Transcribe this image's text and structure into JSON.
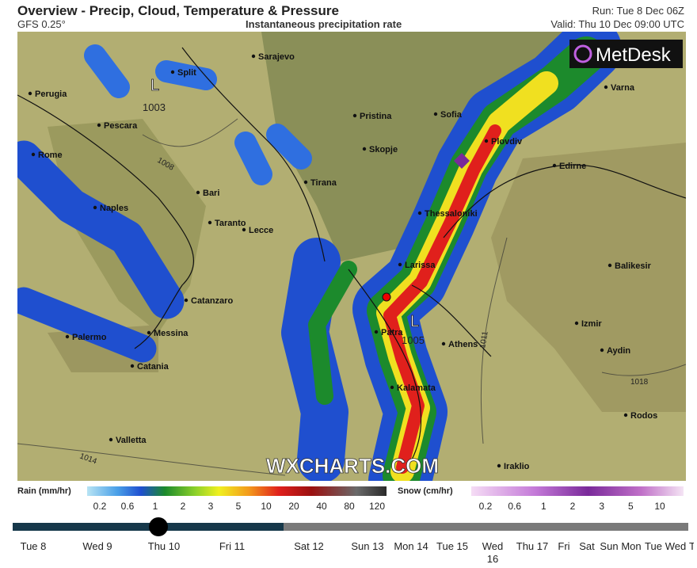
{
  "header": {
    "title": "Overview - Precip, Cloud, Temperature & Pressure",
    "model": "GFS 0.25°",
    "subtitle": "Instantaneous precipitation rate",
    "run": "Run: Tue 8 Dec 06Z",
    "valid": "Valid: Thu 10 Dec 09:00 UTC"
  },
  "logo": "MetDesk",
  "watermark": "WXCHARTS.COM",
  "cities": [
    "Sarajevo",
    "Split",
    "Perugia",
    "Pescara",
    "Rome",
    "Bari",
    "Naples",
    "Taranto",
    "Lecce",
    "Catanzaro",
    "Palermo",
    "Messina",
    "Catania",
    "Valletta",
    "Pristina",
    "Sofia",
    "Skopje",
    "Plovdiv",
    "Edirne",
    "Varna",
    "Tirana",
    "Thessaloniki",
    "Larissa",
    "Patra",
    "Athens",
    "Kalamata",
    "Izmir",
    "Aydin",
    "Balikesir",
    "Rodos",
    "Iraklio"
  ],
  "pressure_labels": [
    {
      "symbol": "L",
      "value": "1003"
    },
    {
      "symbol": "L",
      "value": "1005"
    }
  ],
  "isobars": [
    "1014",
    "1018",
    "1008",
    "1011"
  ],
  "legend": {
    "rain": {
      "title": "Rain (mm/hr)",
      "ticks": [
        0.2,
        0.6,
        1,
        2,
        3,
        5,
        10,
        20,
        40,
        80,
        120
      ]
    },
    "snow": {
      "title": "Snow (cm/hr)",
      "ticks": [
        0.2,
        0.6,
        1,
        2,
        3,
        5,
        10
      ]
    }
  },
  "timeline": [
    "Tue 8",
    "Wed 9",
    "Thu 10",
    "Fri 11",
    "Sat 12",
    "Sun 13",
    "Mon 14",
    "Tue 15",
    "Wed 16",
    "Thu 17",
    "Fri",
    "Sat",
    "Sun",
    "Mon",
    "Tue",
    "Wed",
    "T"
  ]
}
